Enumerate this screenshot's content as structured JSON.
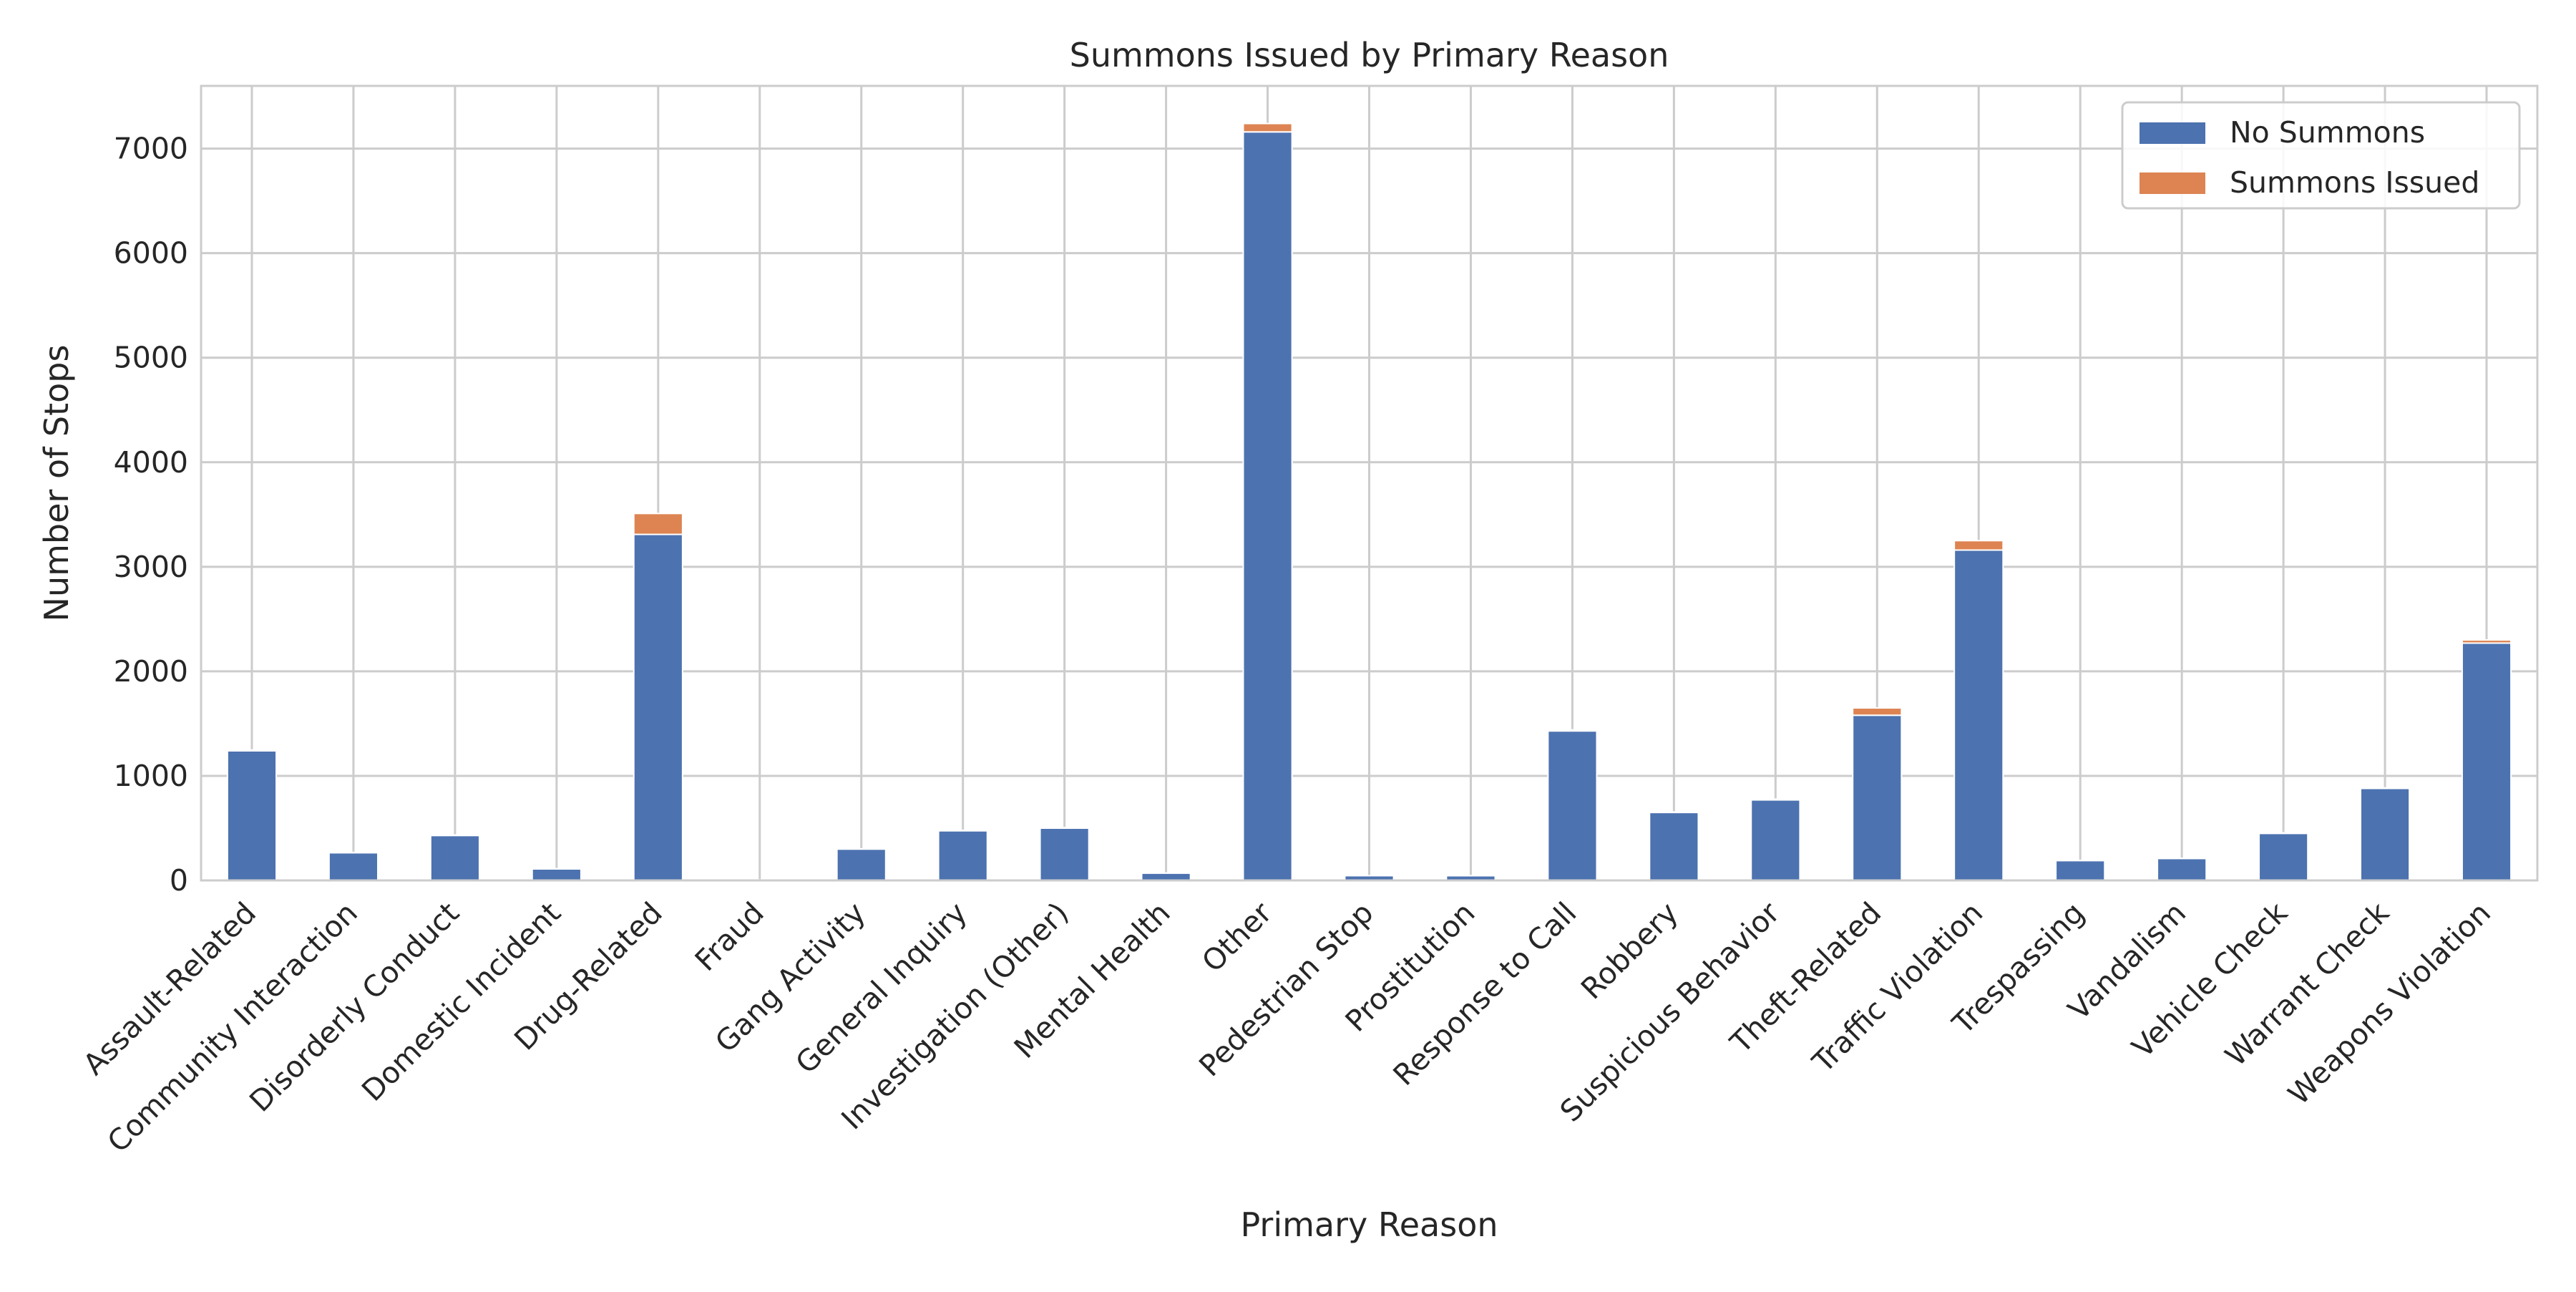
{
  "chart_data": {
    "type": "bar",
    "stacked": true,
    "title": "Summons Issued by Primary Reason",
    "xlabel": "Primary Reason",
    "ylabel": "Number of Stops",
    "ylim": [
      0,
      7600
    ],
    "yticks": [
      0,
      1000,
      2000,
      3000,
      4000,
      5000,
      6000,
      7000
    ],
    "grid": true,
    "legend_position": "top-right",
    "categories": [
      "Assault-Related",
      "Community Interaction",
      "Disorderly Conduct",
      "Domestic Incident",
      "Drug-Related",
      "Fraud",
      "Gang Activity",
      "General Inquiry",
      "Investigation (Other)",
      "Mental Health",
      "Other",
      "Pedestrian Stop",
      "Prostitution",
      "Response to Call",
      "Robbery",
      "Suspicious Behavior",
      "Theft-Related",
      "Traffic Violation",
      "Trespassing",
      "Vandalism",
      "Vehicle Check",
      "Warrant Check",
      "Weapons Violation"
    ],
    "series": [
      {
        "name": "No Summons",
        "color": "#4c72b0",
        "values": [
          1240,
          265,
          430,
          110,
          3310,
          5,
          300,
          475,
          500,
          70,
          7160,
          45,
          45,
          1430,
          650,
          770,
          1580,
          3160,
          190,
          210,
          450,
          880,
          2270
        ]
      },
      {
        "name": "Summons Issued",
        "color": "#dd8452",
        "values": [
          8,
          2,
          5,
          2,
          200,
          0,
          2,
          5,
          5,
          1,
          80,
          0,
          1,
          10,
          5,
          8,
          70,
          90,
          2,
          2,
          5,
          5,
          30
        ]
      }
    ]
  }
}
